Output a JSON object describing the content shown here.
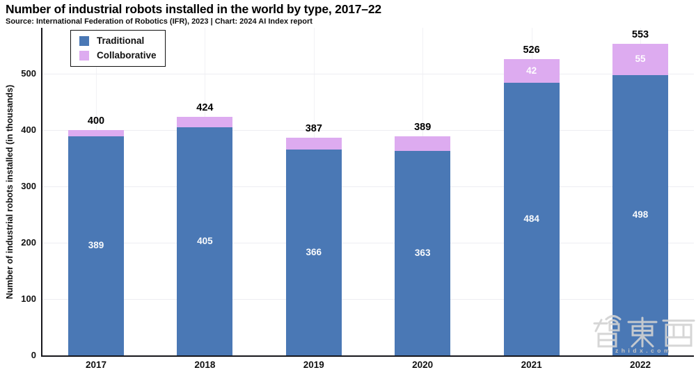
{
  "title": "Number of industrial robots installed in the world by type, 2017–22",
  "subtitle": "Source: International Federation of Robotics (IFR), 2023 | Chart: 2024 AI Index report",
  "legend": {
    "items": [
      {
        "label": "Traditional",
        "color": "#4A78B5"
      },
      {
        "label": "Collaborative",
        "color": "#DDABF0"
      }
    ]
  },
  "watermark": {
    "logo_text": "智東西",
    "url_text": "zhidx.com"
  },
  "chart_data": {
    "type": "bar",
    "stacked": true,
    "title": "Number of industrial robots installed in the world by type, 2017–22",
    "categories": [
      "2017",
      "2018",
      "2019",
      "2020",
      "2021",
      "2022"
    ],
    "series": [
      {
        "name": "Traditional",
        "color": "#4A78B5",
        "values": [
          389,
          405,
          366,
          363,
          484,
          498
        ]
      },
      {
        "name": "Collaborative",
        "color": "#DDABF0",
        "values": [
          11,
          19,
          21,
          26,
          42,
          55
        ]
      }
    ],
    "totals": [
      400,
      424,
      387,
      389,
      526,
      553
    ],
    "xlabel": "",
    "ylabel": "Number of industrial robots installed (in thousands)",
    "yticks": [
      0,
      100,
      200,
      300,
      400,
      500
    ],
    "ylim": [
      0,
      580
    ],
    "grid": true,
    "legend_position": "top-left",
    "annotations": {
      "total_labels_above_bars": true,
      "traditional_labels_inside_bars": [
        389,
        405,
        366,
        363,
        484,
        498
      ],
      "collaborative_labels_inside_bars": [
        null,
        null,
        null,
        null,
        42,
        55
      ]
    }
  }
}
